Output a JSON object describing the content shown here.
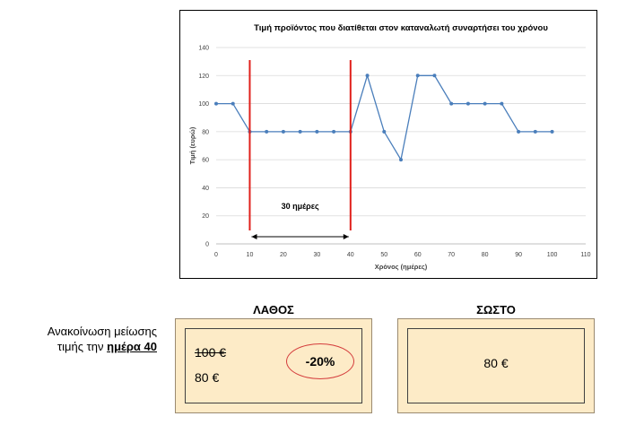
{
  "chart_data": {
    "type": "line",
    "title": "Τιμή προϊόντος που διατίθεται στον καταναλωτή συναρτήσει του χρόνου",
    "xlabel": "Χρόνος (ημέρες)",
    "ylabel": "Τιμή (ευρώ)",
    "xlim": [
      0,
      110
    ],
    "ylim": [
      0,
      140
    ],
    "x_ticks": [
      0,
      10,
      20,
      30,
      40,
      50,
      60,
      70,
      80,
      90,
      100,
      110
    ],
    "y_ticks": [
      0,
      20,
      40,
      60,
      80,
      100,
      120,
      140
    ],
    "grid": "horizontal",
    "series": [
      {
        "x": [
          0,
          5,
          10,
          15,
          20,
          25,
          30,
          35,
          40,
          45,
          50,
          55,
          60,
          65,
          70,
          75,
          80,
          85,
          90,
          95,
          100
        ],
        "y": [
          100,
          100,
          80,
          80,
          80,
          80,
          80,
          80,
          80,
          120,
          80,
          60,
          120,
          120,
          100,
          100,
          100,
          100,
          80,
          80,
          80
        ],
        "color": "#4a7ebb"
      }
    ],
    "markers": [
      {
        "x": 10,
        "color": "#e0201b"
      },
      {
        "x": 40,
        "color": "#e0201b"
      }
    ],
    "annotation": {
      "text": "30 ημέρες",
      "x_from": 10,
      "x_to": 40
    }
  },
  "comparison": {
    "wrong_heading": "ΛΑΘΟΣ",
    "right_heading": "ΣΩΣΤΟ",
    "note_line1": "Ανακοίνωση μείωσης",
    "note_prefix": "τιμής την ",
    "note_day": "ημέρα 40",
    "wrong_card": {
      "old_price": "100 €",
      "new_price": "80 €",
      "discount": "-20%"
    },
    "right_card": {
      "price": "80 €"
    }
  }
}
